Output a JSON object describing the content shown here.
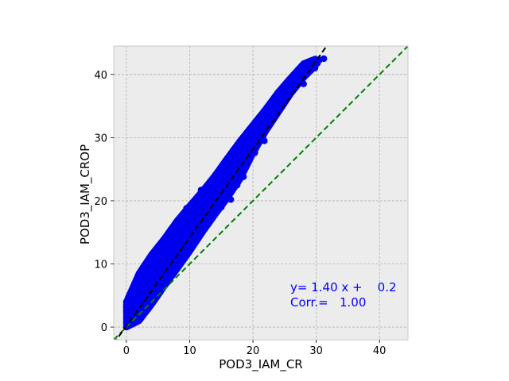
{
  "chart_data": {
    "type": "scatter",
    "xlabel": "POD3_IAM_CR",
    "ylabel": "POD3_IAM_CROP",
    "xlim": [
      -2,
      44.5
    ],
    "ylim": [
      -2,
      44.5
    ],
    "xticks": [
      0,
      10,
      20,
      30,
      40
    ],
    "yticks": [
      0,
      10,
      20,
      30,
      40
    ],
    "grid": true,
    "background": "#ececec",
    "colors": {
      "points": "#0000ee",
      "fit_line": "#000000",
      "identity_line": "#008000",
      "annotation": "#0000ff"
    },
    "band": [
      [
        0,
        0,
        4.0
      ],
      [
        2,
        1.0,
        8.5
      ],
      [
        4,
        3.6,
        11.5
      ],
      [
        6,
        6.5,
        14.0
      ],
      [
        8,
        9.2,
        16.8
      ],
      [
        10,
        12.0,
        19.2
      ],
      [
        12,
        15.0,
        21.5
      ],
      [
        14,
        17.8,
        24.0
      ],
      [
        16,
        20.5,
        26.8
      ],
      [
        18,
        23.5,
        29.5
      ],
      [
        20,
        27.5,
        32.0
      ],
      [
        22,
        31.0,
        34.5
      ],
      [
        24,
        34.0,
        37.2
      ],
      [
        26,
        37.0,
        39.5
      ],
      [
        28,
        39.5,
        41.7
      ],
      [
        30,
        41.5,
        42.5
      ]
    ],
    "edge_points": [
      [
        30.2,
        41.8
      ],
      [
        30.5,
        42.3
      ],
      [
        31.2,
        42.5
      ],
      [
        29.5,
        41.6
      ],
      [
        29.0,
        40.8
      ],
      [
        28.5,
        40.2
      ],
      [
        29.8,
        41.0
      ],
      [
        27.5,
        39.8
      ],
      [
        28.0,
        38.5
      ],
      [
        25.5,
        37.5
      ],
      [
        23.2,
        36.0
      ],
      [
        26.5,
        38.8
      ],
      [
        24.0,
        34.8
      ],
      [
        21.5,
        30.5
      ],
      [
        21.8,
        29.5
      ],
      [
        20.3,
        27.6
      ],
      [
        19.7,
        27.0
      ],
      [
        17.5,
        22.5
      ],
      [
        18.5,
        23.8
      ],
      [
        22.8,
        33.2
      ],
      [
        20.5,
        31.0
      ],
      [
        19.0,
        29.0
      ],
      [
        14.8,
        24.3
      ],
      [
        13.5,
        23.0
      ],
      [
        11.8,
        21.7
      ],
      [
        9.5,
        18.8
      ],
      [
        7.8,
        15.8
      ],
      [
        6.0,
        13.5
      ],
      [
        3.8,
        10.8
      ],
      [
        2.5,
        8.8
      ],
      [
        1.5,
        6.5
      ],
      [
        0.8,
        3.8
      ],
      [
        0.3,
        1.8
      ],
      [
        0.1,
        0.4
      ],
      [
        0.0,
        3.2
      ],
      [
        0.0,
        2.4
      ],
      [
        0.2,
        4.2
      ],
      [
        1.2,
        5.8
      ],
      [
        16.5,
        20.2
      ],
      [
        15.0,
        19.0
      ]
    ],
    "fit_line": {
      "slope": 1.4,
      "intercept": 0.2
    },
    "identity_line": {
      "slope": 1.0,
      "intercept": 0
    },
    "annotation": {
      "line1": "y= 1.40 x +    0.2",
      "line2": "Corr.=   1.00"
    }
  }
}
